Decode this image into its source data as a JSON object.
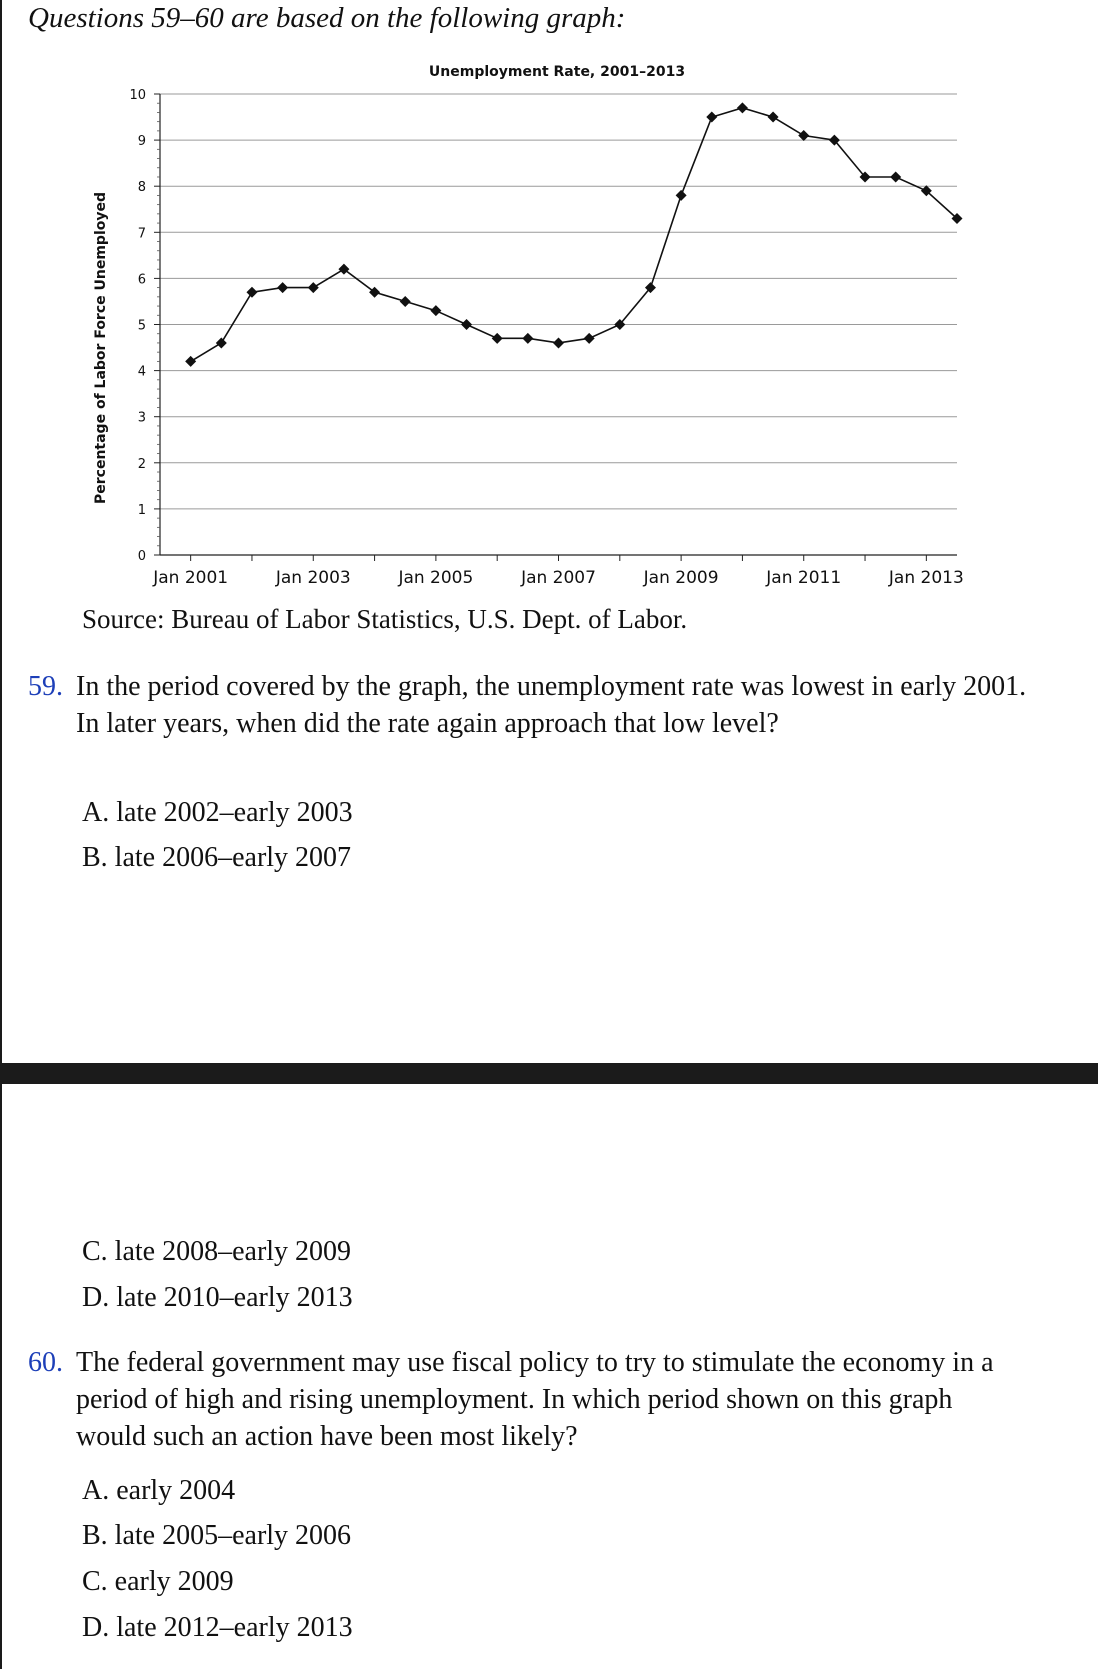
{
  "header": "Questions 59–60 are based on the following graph:",
  "chart_data": {
    "type": "line",
    "title": "Unemployment Rate, 2001–2013",
    "ylabel": "Percentage of Labor Force Unemployed",
    "xlabel": "",
    "ylim": [
      0,
      10
    ],
    "yticks": [
      "0",
      "1",
      "2",
      "3",
      "4",
      "5",
      "6",
      "7",
      "8",
      "9",
      "10"
    ],
    "xlim": [
      "2000-07",
      "2013-07"
    ],
    "xtick_labels": [
      "Jan 2001",
      "Jan 2003",
      "Jan 2005",
      "Jan 2007",
      "Jan 2009",
      "Jan 2011",
      "Jan 2013"
    ],
    "grid": true,
    "marker": "diamond",
    "x": [
      "2001-01",
      "2001-07",
      "2002-01",
      "2002-07",
      "2003-01",
      "2003-07",
      "2004-01",
      "2004-07",
      "2005-01",
      "2005-07",
      "2006-01",
      "2006-07",
      "2007-01",
      "2007-07",
      "2008-01",
      "2008-07",
      "2009-01",
      "2009-07",
      "2010-01",
      "2010-07",
      "2011-01",
      "2011-07",
      "2012-01",
      "2012-07",
      "2013-01",
      "2013-07"
    ],
    "values": [
      4.2,
      4.6,
      5.7,
      5.8,
      5.8,
      6.2,
      5.7,
      5.5,
      5.3,
      5.0,
      4.7,
      4.7,
      4.6,
      4.7,
      5.0,
      5.8,
      7.8,
      9.5,
      9.7,
      9.5,
      9.1,
      9.0,
      8.2,
      8.2,
      7.9,
      7.3
    ]
  },
  "source": "Source: Bureau of Labor Statistics, U.S. Dept. of Labor.",
  "q59": {
    "number": "59.",
    "text": "In the period covered by the graph, the unemployment rate was lowest in early 2001. In later years, when did the rate again approach that low level?",
    "options": [
      "A. late 2002–early 2003",
      "B. late 2006–early 2007",
      "C. late 2008–early 2009",
      "D. late 2010–early 2013"
    ]
  },
  "q60": {
    "number": "60.",
    "text": "The federal government may use fiscal policy to try to stimulate the economy in a period of high and rising unemployment. In which period shown on this graph would such an action have been most likely?",
    "options": [
      "A. early 2004",
      "B. late 2005–early 2006",
      "C. early 2009",
      "D. late 2012–early 2013"
    ]
  }
}
